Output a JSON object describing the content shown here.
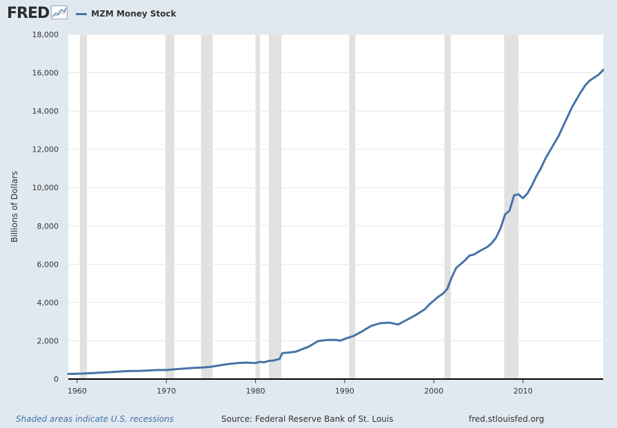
{
  "header": {
    "logo_text": "FRED",
    "logo_icon": "line-chart-icon",
    "legend_label": "MZM Money Stock"
  },
  "footer": {
    "recession_note": "Shaded areas indicate U.S. recessions",
    "source": "Source: Federal Reserve Bank of St. Louis",
    "site": "fred.stlouisfed.org"
  },
  "colors": {
    "series": "#4572a7",
    "recession": "#e1e1e1",
    "background": "#e1e9f0",
    "plot_bg": "#ffffff",
    "grid": "#e6e6e6"
  },
  "chart_data": {
    "type": "line",
    "title": "MZM Money Stock",
    "xlabel": "",
    "ylabel": "Billions of Dollars",
    "xlim": [
      1959.0,
      2019.0
    ],
    "ylim": [
      0,
      18000
    ],
    "x_ticks": [
      1960,
      1970,
      1980,
      1990,
      2000,
      2010
    ],
    "y_ticks": [
      0,
      2000,
      4000,
      6000,
      8000,
      10000,
      12000,
      14000,
      16000,
      18000
    ],
    "y_tick_labels": [
      "0",
      "2,000",
      "4,000",
      "6,000",
      "8,000",
      "10,000",
      "12,000",
      "14,000",
      "16,000",
      "18,000"
    ],
    "grid": true,
    "recessions": [
      [
        1960.3,
        1961.1
      ],
      [
        1969.9,
        1970.9
      ],
      [
        1973.9,
        1975.2
      ],
      [
        1980.0,
        1980.5
      ],
      [
        1981.5,
        1982.9
      ],
      [
        1990.5,
        1991.2
      ],
      [
        2001.2,
        2001.9
      ],
      [
        2007.9,
        2009.5
      ]
    ],
    "series": [
      {
        "name": "MZM Money Stock",
        "x": [
          1959.0,
          1960.0,
          1961.0,
          1962.0,
          1963.0,
          1964.0,
          1965.0,
          1966.0,
          1967.0,
          1968.0,
          1969.0,
          1970.0,
          1971.0,
          1972.0,
          1973.0,
          1974.0,
          1975.0,
          1976.0,
          1977.0,
          1978.0,
          1979.0,
          1980.0,
          1980.5,
          1981.0,
          1981.5,
          1982.0,
          1982.7,
          1983.0,
          1983.5,
          1984.0,
          1984.5,
          1985.0,
          1986.0,
          1987.0,
          1988.0,
          1989.0,
          1989.5,
          1990.0,
          1991.0,
          1992.0,
          1992.5,
          1993.0,
          1993.5,
          1994.0,
          1995.0,
          1996.0,
          1997.0,
          1998.0,
          1999.0,
          1999.5,
          2000.0,
          2000.5,
          2001.0,
          2001.5,
          2002.0,
          2002.5,
          2003.0,
          2003.5,
          2004.0,
          2004.5,
          2005.0,
          2006.0,
          2006.5,
          2007.0,
          2007.5,
          2008.0,
          2008.5,
          2009.0,
          2009.5,
          2010.0,
          2010.5,
          2011.0,
          2011.5,
          2012.0,
          2012.5,
          2013.0,
          2013.5,
          2014.0,
          2014.5,
          2015.0,
          2015.5,
          2016.0,
          2016.5,
          2017.0,
          2017.5,
          2018.0,
          2018.5,
          2019.0
        ],
        "values": [
          270,
          280,
          295,
          320,
          345,
          370,
          400,
          420,
          430,
          450,
          470,
          470,
          510,
          550,
          580,
          600,
          640,
          720,
          790,
          840,
          860,
          840,
          900,
          880,
          950,
          970,
          1050,
          1350,
          1380,
          1400,
          1430,
          1520,
          1700,
          1980,
          2040,
          2050,
          2000,
          2100,
          2250,
          2500,
          2650,
          2780,
          2850,
          2920,
          2950,
          2850,
          3100,
          3350,
          3650,
          3900,
          4100,
          4300,
          4450,
          4700,
          5300,
          5800,
          6000,
          6200,
          6450,
          6500,
          6650,
          6900,
          7100,
          7400,
          7900,
          8600,
          8800,
          9600,
          9650,
          9450,
          9700,
          10100,
          10600,
          11000,
          11500,
          11900,
          12300,
          12700,
          13200,
          13700,
          14200,
          14600,
          15000,
          15350,
          15600,
          15750,
          15900,
          16150
        ]
      }
    ]
  }
}
